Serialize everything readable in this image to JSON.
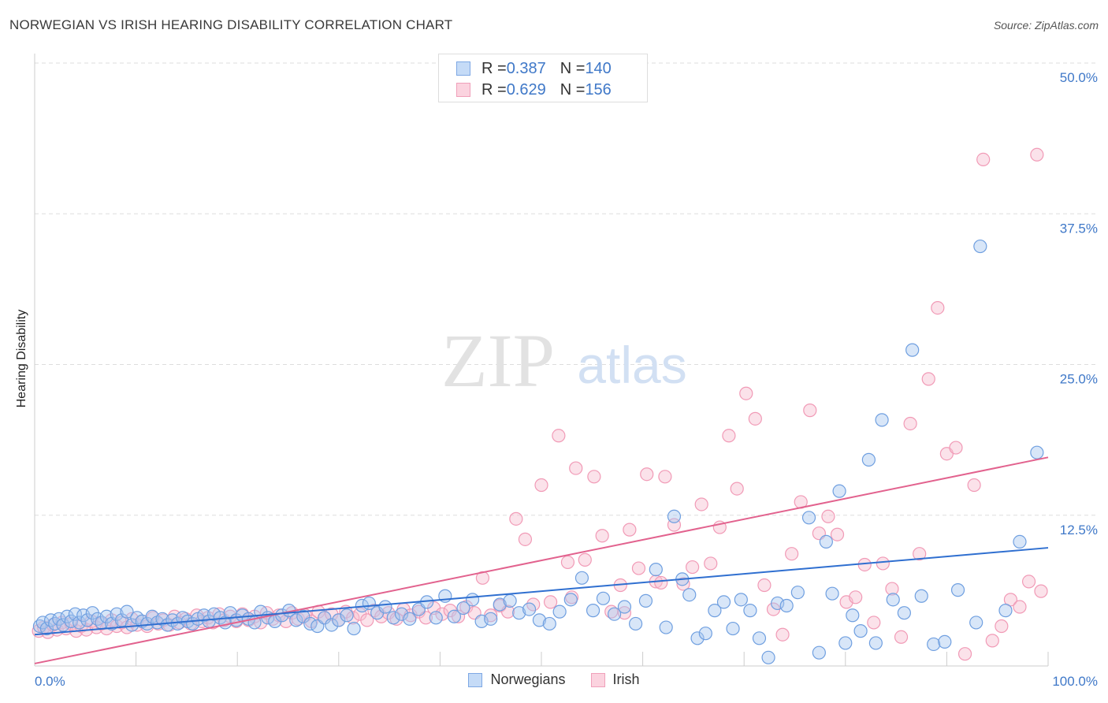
{
  "header": {
    "title": "NORWEGIAN VS IRISH HEARING DISABILITY CORRELATION CHART",
    "source": "Source: ZipAtlas.com"
  },
  "watermark": {
    "zip": "ZIP",
    "atlas": "atlas"
  },
  "legend_top": {
    "rows": [
      {
        "r_label": "R = ",
        "r_value": "0.387",
        "n_label": "N = ",
        "n_value": "140"
      },
      {
        "r_label": "R = ",
        "r_value": "0.629",
        "n_label": "N = ",
        "n_value": "156"
      }
    ]
  },
  "colors": {
    "norwegian_fill": "#a9c7f0",
    "norwegian_stroke": "#6f9fe0",
    "norwegian_line": "#2f6fd0",
    "irish_fill": "#f7bfd0",
    "irish_stroke": "#f19ab6",
    "irish_line": "#e2628e",
    "tick_label": "#3f78c8",
    "grid": "#dddddd"
  },
  "chart_data": {
    "type": "scatter",
    "title": "NORWEGIAN VS IRISH HEARING DISABILITY CORRELATION CHART",
    "xlabel": "",
    "ylabel": "Hearing Disability",
    "xlim": [
      0,
      100
    ],
    "ylim": [
      0,
      50
    ],
    "x_tick_labels": [
      "0.0%",
      "100.0%"
    ],
    "y_ticks": [
      12.5,
      25.0,
      37.5,
      50.0
    ],
    "y_tick_labels": [
      "12.5%",
      "25.0%",
      "37.5%",
      "50.0%"
    ],
    "grid": "horizontal dashed",
    "legend_position": "bottom",
    "series": [
      {
        "name": "Norwegians",
        "r": 0.387,
        "n": 140,
        "trend": {
          "x": [
            0,
            100
          ],
          "y": [
            2.6,
            9.8
          ]
        },
        "points": [
          [
            0.5,
            3.3
          ],
          [
            0.8,
            3.6
          ],
          [
            1.2,
            3.1
          ],
          [
            1.6,
            3.8
          ],
          [
            2,
            3.5
          ],
          [
            2.4,
            3.9
          ],
          [
            2.8,
            3.4
          ],
          [
            3.2,
            4.1
          ],
          [
            3.6,
            3.7
          ],
          [
            4,
            4.3
          ],
          [
            4.4,
            3.6
          ],
          [
            4.8,
            4.2
          ],
          [
            5.2,
            3.8
          ],
          [
            5.7,
            4.4
          ],
          [
            6.2,
            3.9
          ],
          [
            6.6,
            3.6
          ],
          [
            7.1,
            4.1
          ],
          [
            7.6,
            3.5
          ],
          [
            8.1,
            4.3
          ],
          [
            8.6,
            3.8
          ],
          [
            9.1,
            4.5
          ],
          [
            9.6,
            3.4
          ],
          [
            10.1,
            4.0
          ],
          [
            10.6,
            3.7
          ],
          [
            11.1,
            3.5
          ],
          [
            11.6,
            4.1
          ],
          [
            12.1,
            3.6
          ],
          [
            12.6,
            3.9
          ],
          [
            13.1,
            3.4
          ],
          [
            13.6,
            3.8
          ],
          [
            14.1,
            3.5
          ],
          [
            14.6,
            4.0
          ],
          [
            15.1,
            3.7
          ],
          [
            15.6,
            3.5
          ],
          [
            16.1,
            3.9
          ],
          [
            16.7,
            4.2
          ],
          [
            17.2,
            3.7
          ],
          [
            17.7,
            4.3
          ],
          [
            18.3,
            4.0
          ],
          [
            18.8,
            3.6
          ],
          [
            19.3,
            4.4
          ],
          [
            19.9,
            3.8
          ],
          [
            20.5,
            4.2
          ],
          [
            21.1,
            3.9
          ],
          [
            21.7,
            3.6
          ],
          [
            22.3,
            4.5
          ],
          [
            23,
            4.0
          ],
          [
            23.7,
            3.7
          ],
          [
            24.4,
            4.2
          ],
          [
            25.1,
            4.6
          ],
          [
            25.8,
            3.8
          ],
          [
            26.5,
            4.1
          ],
          [
            27.2,
            3.5
          ],
          [
            27.9,
            3.3
          ],
          [
            28.6,
            4.0
          ],
          [
            29.3,
            3.4
          ],
          [
            30,
            3.8
          ],
          [
            30.8,
            4.2
          ],
          [
            31.5,
            3.1
          ],
          [
            32.3,
            5.0
          ],
          [
            33,
            5.2
          ],
          [
            33.8,
            4.4
          ],
          [
            34.6,
            4.9
          ],
          [
            35.4,
            4.0
          ],
          [
            36.2,
            4.3
          ],
          [
            37,
            3.9
          ],
          [
            37.9,
            4.7
          ],
          [
            38.7,
            5.3
          ],
          [
            39.6,
            4.0
          ],
          [
            40.5,
            5.8
          ],
          [
            41.4,
            4.1
          ],
          [
            42.3,
            4.8
          ],
          [
            43.2,
            5.5
          ],
          [
            44.1,
            3.7
          ],
          [
            45,
            3.9
          ],
          [
            45.9,
            5.1
          ],
          [
            46.9,
            5.4
          ],
          [
            47.8,
            4.4
          ],
          [
            48.8,
            4.7
          ],
          [
            49.8,
            3.8
          ],
          [
            50.8,
            3.5
          ],
          [
            51.8,
            4.5
          ],
          [
            52.9,
            5.5
          ],
          [
            54,
            7.3
          ],
          [
            55.1,
            4.6
          ],
          [
            56.1,
            5.6
          ],
          [
            57.2,
            4.3
          ],
          [
            58.2,
            4.9
          ],
          [
            59.3,
            3.5
          ],
          [
            60.3,
            5.4
          ],
          [
            61.3,
            8.0
          ],
          [
            62.3,
            3.2
          ],
          [
            63.1,
            12.4
          ],
          [
            63.9,
            7.2
          ],
          [
            64.6,
            5.9
          ],
          [
            65.4,
            2.3
          ],
          [
            66.2,
            2.7
          ],
          [
            67.1,
            4.6
          ],
          [
            68,
            5.3
          ],
          [
            68.9,
            3.1
          ],
          [
            69.7,
            5.5
          ],
          [
            70.6,
            4.6
          ],
          [
            71.5,
            2.3
          ],
          [
            72.4,
            0.7
          ],
          [
            73.3,
            5.2
          ],
          [
            74.2,
            5.0
          ],
          [
            75.3,
            6.1
          ],
          [
            76.4,
            12.3
          ],
          [
            77.4,
            1.1
          ],
          [
            78.1,
            10.3
          ],
          [
            78.7,
            6.0
          ],
          [
            79.4,
            14.5
          ],
          [
            80,
            1.9
          ],
          [
            80.7,
            4.2
          ],
          [
            81.5,
            2.9
          ],
          [
            82.3,
            17.1
          ],
          [
            83,
            1.9
          ],
          [
            83.6,
            20.4
          ],
          [
            84.7,
            5.5
          ],
          [
            85.8,
            4.4
          ],
          [
            86.6,
            26.2
          ],
          [
            87.5,
            5.8
          ],
          [
            88.7,
            1.8
          ],
          [
            89.8,
            2.0
          ],
          [
            91.1,
            6.3
          ],
          [
            92.9,
            3.6
          ],
          [
            93.3,
            34.8
          ],
          [
            95.8,
            4.6
          ],
          [
            97.2,
            10.3
          ],
          [
            98.9,
            17.7
          ]
        ]
      },
      {
        "name": "Irish",
        "r": 0.629,
        "n": 156,
        "trend": {
          "x": [
            0,
            100
          ],
          "y": [
            0.2,
            17.3
          ]
        },
        "points": [
          [
            0.4,
            2.9
          ],
          [
            0.9,
            3.2
          ],
          [
            1.3,
            2.8
          ],
          [
            1.8,
            3.4
          ],
          [
            2.2,
            3.0
          ],
          [
            2.7,
            3.6
          ],
          [
            3.1,
            3.1
          ],
          [
            3.6,
            3.5
          ],
          [
            4.1,
            2.9
          ],
          [
            4.6,
            3.3
          ],
          [
            5.1,
            3.0
          ],
          [
            5.6,
            3.7
          ],
          [
            6.1,
            3.2
          ],
          [
            6.6,
            3.5
          ],
          [
            7.1,
            3.1
          ],
          [
            7.6,
            3.8
          ],
          [
            8.1,
            3.3
          ],
          [
            8.6,
            3.6
          ],
          [
            9.1,
            3.2
          ],
          [
            9.6,
            3.9
          ],
          [
            10.1,
            3.4
          ],
          [
            10.6,
            3.7
          ],
          [
            11.1,
            3.3
          ],
          [
            11.7,
            4.0
          ],
          [
            12.2,
            3.5
          ],
          [
            12.7,
            3.8
          ],
          [
            13.3,
            3.4
          ],
          [
            13.8,
            4.1
          ],
          [
            14.3,
            3.6
          ],
          [
            14.9,
            3.9
          ],
          [
            15.4,
            3.5
          ],
          [
            16,
            4.2
          ],
          [
            16.5,
            3.7
          ],
          [
            17.1,
            4.0
          ],
          [
            17.6,
            3.6
          ],
          [
            18.2,
            4.3
          ],
          [
            18.7,
            3.8
          ],
          [
            19.3,
            4.1
          ],
          [
            19.9,
            3.7
          ],
          [
            20.5,
            4.3
          ],
          [
            21.1,
            3.8
          ],
          [
            21.7,
            4.1
          ],
          [
            22.3,
            3.6
          ],
          [
            22.9,
            4.4
          ],
          [
            23.5,
            3.9
          ],
          [
            24.1,
            4.2
          ],
          [
            24.8,
            3.7
          ],
          [
            25.4,
            4.4
          ],
          [
            26,
            3.9
          ],
          [
            26.7,
            4.2
          ],
          [
            27.3,
            3.7
          ],
          [
            28,
            4.5
          ],
          [
            28.6,
            4.0
          ],
          [
            29.3,
            4.3
          ],
          [
            30,
            3.8
          ],
          [
            30.7,
            4.5
          ],
          [
            31.4,
            4.0
          ],
          [
            32.1,
            4.3
          ],
          [
            32.8,
            3.8
          ],
          [
            33.5,
            4.6
          ],
          [
            34.2,
            4.1
          ],
          [
            34.9,
            4.4
          ],
          [
            35.7,
            3.9
          ],
          [
            36.4,
            4.7
          ],
          [
            37.1,
            4.2
          ],
          [
            37.9,
            4.5
          ],
          [
            38.6,
            4.0
          ],
          [
            39.4,
            4.8
          ],
          [
            40.2,
            4.3
          ],
          [
            41,
            4.6
          ],
          [
            41.8,
            4.1
          ],
          [
            42.6,
            4.9
          ],
          [
            43.4,
            4.4
          ],
          [
            44.2,
            7.3
          ],
          [
            45,
            4.2
          ],
          [
            45.9,
            5.0
          ],
          [
            46.7,
            4.5
          ],
          [
            47.5,
            12.2
          ],
          [
            48.4,
            10.5
          ],
          [
            49.2,
            5.1
          ],
          [
            50,
            15.0
          ],
          [
            50.9,
            5.3
          ],
          [
            51.7,
            19.1
          ],
          [
            52.6,
            8.6
          ],
          [
            53.4,
            16.4
          ],
          [
            54.3,
            8.8
          ],
          [
            55.2,
            15.7
          ],
          [
            56,
            10.8
          ],
          [
            56.9,
            4.5
          ],
          [
            57.8,
            6.7
          ],
          [
            58.7,
            11.3
          ],
          [
            59.6,
            8.1
          ],
          [
            60.4,
            15.9
          ],
          [
            61.3,
            7.0
          ],
          [
            62.2,
            15.7
          ],
          [
            63.1,
            11.7
          ],
          [
            64,
            6.8
          ],
          [
            64.9,
            8.2
          ],
          [
            65.8,
            13.4
          ],
          [
            66.7,
            8.5
          ],
          [
            67.6,
            11.5
          ],
          [
            68.5,
            19.1
          ],
          [
            69.3,
            14.7
          ],
          [
            70.2,
            22.6
          ],
          [
            71.1,
            20.5
          ],
          [
            72,
            6.7
          ],
          [
            72.9,
            4.7
          ],
          [
            73.8,
            2.6
          ],
          [
            74.7,
            9.3
          ],
          [
            75.6,
            13.6
          ],
          [
            76.5,
            21.2
          ],
          [
            77.4,
            11.0
          ],
          [
            78.3,
            12.4
          ],
          [
            79.2,
            10.9
          ],
          [
            80.1,
            5.3
          ],
          [
            81,
            5.7
          ],
          [
            81.9,
            8.4
          ],
          [
            82.8,
            3.6
          ],
          [
            83.7,
            8.5
          ],
          [
            84.6,
            6.4
          ],
          [
            85.5,
            2.4
          ],
          [
            86.4,
            20.1
          ],
          [
            87.3,
            9.3
          ],
          [
            88.2,
            23.8
          ],
          [
            89.1,
            29.7
          ],
          [
            90,
            17.6
          ],
          [
            90.9,
            18.1
          ],
          [
            91.8,
            1.0
          ],
          [
            92.7,
            15.0
          ],
          [
            93.6,
            42.0
          ],
          [
            94.5,
            2.1
          ],
          [
            95.4,
            3.3
          ],
          [
            96.3,
            5.5
          ],
          [
            97.2,
            4.9
          ],
          [
            98.1,
            7.0
          ],
          [
            98.9,
            42.4
          ],
          [
            99.3,
            6.2
          ],
          [
            61.8,
            6.9
          ],
          [
            58.2,
            4.4
          ],
          [
            53.0,
            5.7
          ]
        ]
      }
    ]
  },
  "legend_bottom": [
    {
      "label": "Norwegians"
    },
    {
      "label": "Irish"
    }
  ]
}
